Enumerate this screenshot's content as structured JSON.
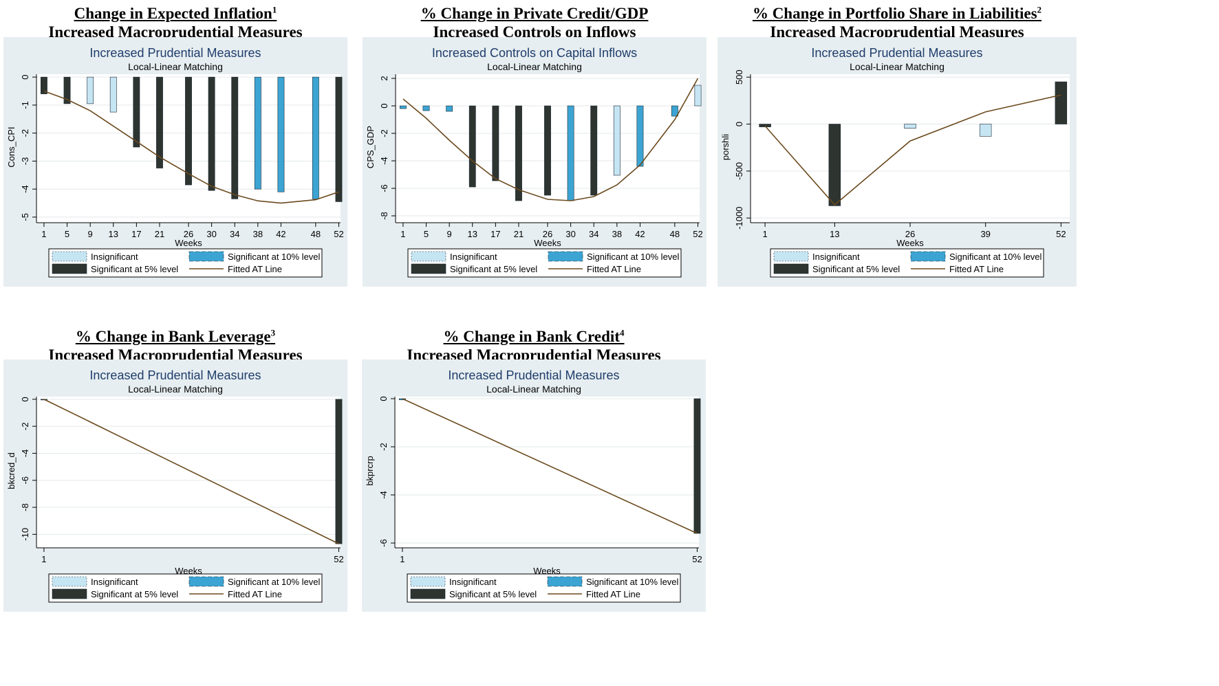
{
  "colors": {
    "background": "#e7eef1",
    "insignificant": "#c6e5f3",
    "significant_10": "#3ca4d3",
    "significant_5": "#2e3430",
    "fitted_line": "#6b4a1e",
    "subtitle": "#1f3d6b"
  },
  "legend": {
    "insignificant": "Insignificant",
    "sig10": "Significant at 10% level",
    "sig5": "Significant at 5% level",
    "fitted": "Fitted AT Line"
  },
  "panels": [
    {
      "title1": "Change in Expected Inflation",
      "sup": "1",
      "title2": "Increased Macroprudential Measures"
    },
    {
      "title1": "% Change in Private Credit/GDP",
      "sup": "",
      "title2": "Increased Controls on Inflows"
    },
    {
      "title1": "% Change in Portfolio Share in Liabilities",
      "sup": "2",
      "title2": "Increased Macroprudential Measures"
    },
    {
      "title1": "% Change in Bank Leverage",
      "sup": "3",
      "title2": "Increased Macroprudential Measures"
    },
    {
      "title1": "% Change in Bank Credit",
      "sup": "4",
      "title2": "Increased Macroprudential Measures"
    }
  ],
  "chart_data": [
    {
      "type": "bar",
      "title": "Increased Prudential Measures",
      "subtitle": "Local-Linear Matching",
      "xlabel": "Weeks",
      "ylabel": "Cons_CPI",
      "xlim": [
        -0.3,
        52.3
      ],
      "ylim": [
        -5.2,
        0.2
      ],
      "yticks": [
        0,
        -1,
        -2,
        -3,
        -4,
        -5
      ],
      "yticklabels": [
        "0",
        "-1",
        "-2",
        "-3",
        "-4",
        "-5"
      ],
      "bar_width_weeks": 1.1,
      "x": [
        1,
        5,
        9,
        13,
        17,
        21,
        26,
        30,
        34,
        38,
        42,
        48,
        52
      ],
      "values": [
        -0.6,
        -0.95,
        -0.95,
        -1.25,
        -2.5,
        -3.25,
        -3.85,
        -4.05,
        -4.35,
        -4.0,
        -4.1,
        -4.35,
        -4.45
      ],
      "significance": [
        "5%",
        "5%",
        "insignificant",
        "insignificant",
        "5%",
        "5%",
        "5%",
        "5%",
        "5%",
        "10%",
        "10%",
        "10%",
        "5%"
      ],
      "fitted_x": [
        1,
        5,
        9,
        13,
        17,
        21,
        26,
        30,
        34,
        38,
        42,
        48,
        52
      ],
      "fitted_y": [
        -0.5,
        -0.8,
        -1.2,
        -1.75,
        -2.3,
        -2.85,
        -3.45,
        -3.9,
        -4.2,
        -4.42,
        -4.5,
        -4.38,
        -4.1
      ]
    },
    {
      "type": "bar",
      "title": "Increased Controls on Capital Inflows",
      "subtitle": "Local-Linear Matching",
      "xlabel": "Weeks",
      "ylabel": "CPS_GDP",
      "xlim": [
        -0.3,
        52.3
      ],
      "ylim": [
        -8.5,
        2.5
      ],
      "yticks": [
        2,
        0,
        -2,
        -4,
        -6,
        -8
      ],
      "yticklabels": [
        "2",
        "0",
        "-2",
        "-4",
        "-6",
        "-8"
      ],
      "bar_width_weeks": 1.1,
      "x": [
        1,
        5,
        9,
        13,
        17,
        21,
        26,
        30,
        34,
        38,
        42,
        48,
        52
      ],
      "values": [
        -0.2,
        -0.35,
        -0.4,
        -5.9,
        -5.45,
        -6.9,
        -6.5,
        -6.9,
        -6.5,
        -5.05,
        -4.4,
        -0.75,
        1.5
      ],
      "significance": [
        "10%",
        "10%",
        "10%",
        "5%",
        "5%",
        "5%",
        "5%",
        "10%",
        "5%",
        "insignificant",
        "10%",
        "10%",
        "insignificant"
      ],
      "fitted_x": [
        1,
        5,
        9,
        13,
        17,
        21,
        26,
        30,
        34,
        38,
        42,
        48,
        52
      ],
      "fitted_y": [
        0.5,
        -0.9,
        -2.5,
        -4.0,
        -5.3,
        -6.1,
        -6.8,
        -6.9,
        -6.6,
        -5.75,
        -4.3,
        -1.0,
        2.0
      ]
    },
    {
      "type": "bar",
      "title": "Increased Prudential Measures",
      "subtitle": "Local-Linear Matching",
      "xlabel": "Weeks",
      "ylabel": "porshli",
      "xlim": [
        -1.5,
        53.5
      ],
      "ylim": [
        -1050,
        560
      ],
      "yticks": [
        500,
        0,
        -500,
        -1000
      ],
      "yticklabels": [
        "500",
        "0",
        "-500",
        "-1000"
      ],
      "bar_width_weeks": 2.0,
      "x": [
        1,
        13,
        26,
        39,
        52
      ],
      "values": [
        -30,
        -870,
        -45,
        -130,
        450
      ],
      "significance": [
        "5%",
        "5%",
        "insignificant",
        "insignificant",
        "5%"
      ],
      "fitted_x": [
        1,
        13,
        26,
        39,
        52
      ],
      "fitted_y": [
        -20,
        -860,
        -180,
        130,
        310
      ]
    },
    {
      "type": "bar",
      "title": "Increased Prudential Measures",
      "subtitle": "Local-Linear Matching",
      "xlabel": "Weeks",
      "ylabel": "bkcred_d",
      "xlim": [
        -0.3,
        52.3
      ],
      "ylim": [
        -11.0,
        0.4
      ],
      "yticks": [
        0,
        -2,
        -4,
        -6,
        -8,
        -10
      ],
      "yticklabels": [
        "0",
        "-2",
        "-4",
        "-6",
        "-8",
        "-10"
      ],
      "bar_width_weeks": 1.1,
      "x": [
        1,
        52
      ],
      "values": [
        -0.03,
        -10.7
      ],
      "significance": [
        "5%",
        "5%"
      ],
      "fitted_x": [
        1,
        52
      ],
      "fitted_y": [
        0,
        -10.7
      ]
    },
    {
      "type": "bar",
      "title": "Increased Prudential Measures",
      "subtitle": "Local-Linear Matching",
      "xlabel": "Weeks",
      "ylabel": "bkprcrp",
      "xlim": [
        -0.3,
        52.3
      ],
      "ylim": [
        -6.2,
        0.2
      ],
      "yticks": [
        0,
        -2,
        -4,
        -6
      ],
      "yticklabels": [
        "0",
        "-2",
        "-4",
        "-6"
      ],
      "bar_width_weeks": 1.1,
      "x": [
        1,
        52
      ],
      "values": [
        -0.05,
        -5.6
      ],
      "significance": [
        "10%",
        "5%"
      ],
      "fitted_x": [
        1,
        52
      ],
      "fitted_y": [
        0,
        -5.6
      ]
    }
  ]
}
